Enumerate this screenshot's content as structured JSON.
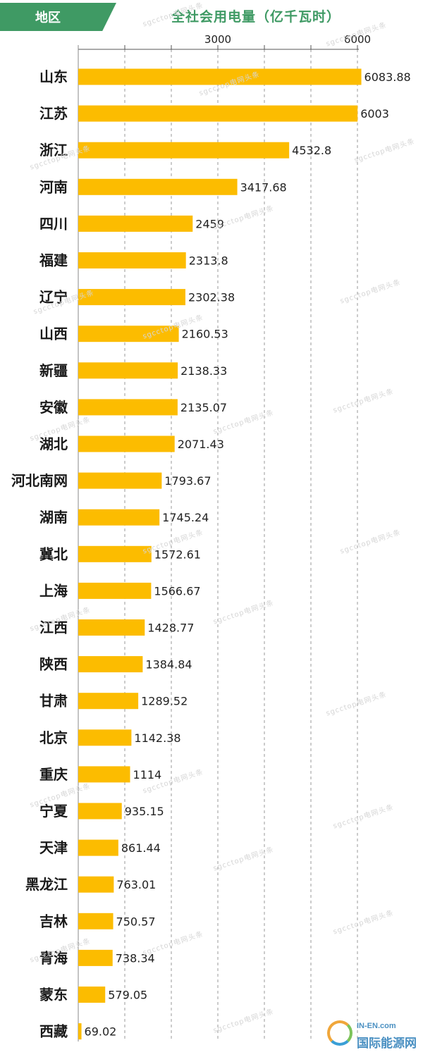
{
  "header": {
    "category_heading": "地区",
    "title": "全社会用电量（亿千瓦时）"
  },
  "colors": {
    "bar": "#fcbc00",
    "header_green": "#3f9a64",
    "grid": "#999999"
  },
  "watermark": "sgcctop电网头条",
  "logo": {
    "en": "IN-EN.com",
    "cn": "国际能源网",
    "icon": "sun-leaf-logo-icon"
  },
  "chart_data": {
    "type": "bar",
    "orientation": "horizontal",
    "title": "全社会用电量（亿千瓦时）",
    "ylabel": "地区",
    "xlim": [
      0,
      6000
    ],
    "grid": true,
    "xticks": [
      3000,
      6000
    ],
    "categories": [
      "山东",
      "江苏",
      "浙江",
      "河南",
      "四川",
      "福建",
      "辽宁",
      "山西",
      "新疆",
      "安徽",
      "湖北",
      "河北南网",
      "湖南",
      "冀北",
      "上海",
      "江西",
      "陕西",
      "甘肃",
      "北京",
      "重庆",
      "宁夏",
      "天津",
      "黑龙江",
      "吉林",
      "青海",
      "蒙东",
      "西藏"
    ],
    "values": [
      6083.88,
      6003,
      4532.8,
      3417.68,
      2459,
      2313.8,
      2302.38,
      2160.53,
      2138.33,
      2135.07,
      2071.43,
      1793.67,
      1745.24,
      1572.61,
      1566.67,
      1428.77,
      1384.84,
      1289.52,
      1142.38,
      1114,
      935.15,
      861.44,
      763.01,
      750.57,
      738.34,
      579.05,
      69.02
    ],
    "value_labels": [
      "6083.88",
      "6003",
      "4532.8",
      "3417.68",
      "2459",
      "2313.8",
      "2302.38",
      "2160.53",
      "2138.33",
      "2135.07",
      "2071.43",
      "1793.67",
      "1745.24",
      "1572.61",
      "1566.67",
      "1428.77",
      "1384.84",
      "1289.52",
      "1142.38",
      "1114",
      "935.15",
      "861.44",
      "763.01",
      "750.57",
      "738.34",
      "579.05",
      "69.02"
    ]
  }
}
